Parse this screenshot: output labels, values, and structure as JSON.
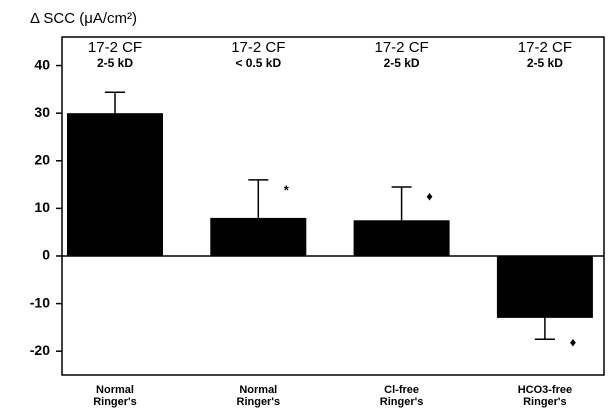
{
  "chart_data": {
    "type": "bar",
    "title": "Δ SCC (μA/cm²)",
    "categories": [
      "Normal Ringer's",
      "Normal Ringer's",
      "Cl-free Ringer's",
      "HCO3-free Ringer's"
    ],
    "values": [
      30,
      8,
      7.5,
      -13
    ],
    "errors": [
      4.4,
      8,
      7,
      4.5
    ],
    "group_labels": [
      "17-2 CF",
      "17-2 CF",
      "17-2 CF",
      "17-2 CF"
    ],
    "size_labels": [
      "2-5 kD",
      "< 0.5 kD",
      "2-5 kD",
      "2-5 kD"
    ],
    "significance": [
      null,
      "*",
      "♦",
      "♦"
    ],
    "color": "#000000",
    "ylim": [
      -25,
      46
    ],
    "yticks": [
      -20,
      -10,
      0,
      10,
      20,
      30,
      40
    ]
  }
}
